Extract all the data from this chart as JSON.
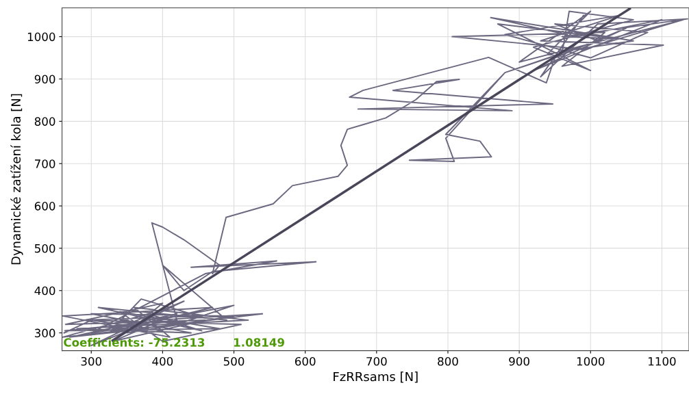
{
  "chart_data": {
    "type": "line",
    "xlabel": "FzRRsams [N]",
    "ylabel": "Dynamické zatížení kola [N]",
    "xlim": [
      259,
      1138
    ],
    "ylim": [
      258,
      1068
    ],
    "xticks": [
      300,
      400,
      500,
      600,
      700,
      800,
      900,
      1000,
      1100
    ],
    "yticks": [
      300,
      400,
      500,
      600,
      700,
      800,
      900,
      1000
    ],
    "grid": true,
    "marker": "none",
    "line_style": "solid",
    "annotations": [
      "Coefficients: -75.2313       1.08149"
    ],
    "series": [
      {
        "color": "#6b6880",
        "x": [
          262,
          300,
          380,
          270,
          420,
          330,
          460,
          264,
          400,
          350,
          500,
          300,
          440,
          280,
          520,
          360,
          410,
          260,
          470,
          320,
          540,
          390,
          300,
          430,
          350,
          263,
          480,
          340,
          400,
          510,
          290,
          450,
          370,
          330,
          500,
          420,
          260,
          380,
          455,
          310,
          490,
          400,
          430,
          470,
          615,
          440,
          560,
          460,
          300,
          420,
          385,
          400,
          430,
          480,
          470,
          489,
          555,
          582,
          646,
          659,
          650,
          659,
          681,
          713,
          755,
          784,
          816,
          723,
          947,
          674,
          890,
          662,
          681,
          857,
          938,
          950,
          1050,
          920,
          1100,
          980,
          860,
          1060,
          940,
          1000,
          900,
          1130,
          990,
          806,
          1020,
          960,
          1102,
          930,
          1040,
          880,
          1000,
          1080,
          950,
          1010,
          880,
          797,
          845,
          861,
          746,
          809,
          797,
          880,
          960,
          970,
          1060,
          920,
          1000,
          870,
          1040,
          960,
          1136,
          1010,
          930,
          990
        ],
        "values": [
          300,
          330,
          310,
          290,
          345,
          280,
          330,
          320,
          370,
          300,
          340,
          345,
          300,
          310,
          330,
          360,
          290,
          340,
          360,
          300,
          345,
          330,
          270,
          375,
          320,
          305,
          310,
          350,
          280,
          320,
          330,
          340,
          380,
          310,
          365,
          320,
          290,
          345,
          305,
          360,
          330,
          460,
          400,
          445,
          468,
          455,
          470,
          440,
          300,
          330,
          560,
          550,
          520,
          460,
          440,
          573,
          605,
          648,
          670,
          696,
          743,
          781,
          792,
          808,
          851,
          894,
          899,
          873,
          841,
          829,
          825,
          857,
          873,
          951,
          891,
          950,
          1020,
          920,
          1040,
          1000,
          1045,
          990,
          960,
          1060,
          940,
          1040,
          970,
          1000,
          1010,
          930,
          980,
          990,
          1050,
          1005,
          950,
          1010,
          1030,
          990,
          915,
          769,
          753,
          716,
          708,
          705,
          760,
          915,
          960,
          1060,
          1040,
          975,
          920,
          1030,
          995,
          1000,
          1042,
          1030,
          905,
          1050
        ]
      },
      {
        "type": "line",
        "color": "#4a4558",
        "x": [
          330,
          1055
        ],
        "values": [
          282,
          1066
        ]
      }
    ]
  }
}
